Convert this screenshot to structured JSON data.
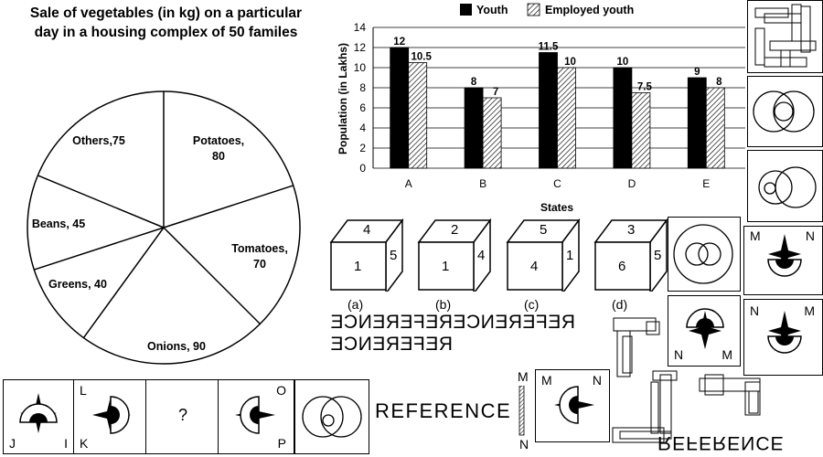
{
  "pie": {
    "title_line1": "Sale of vegetables (in kg) on a particular",
    "title_line2": "day in a housing complex of 50 familes",
    "slices": [
      {
        "label_line1": "Potatoes,",
        "label_line2": "80",
        "value": 80
      },
      {
        "label_line1": "Tomatoes,",
        "label_line2": "70",
        "value": 70
      },
      {
        "label_line1": "Onions, 90",
        "label_line2": "",
        "value": 90
      },
      {
        "label_line1": "Greens, 40",
        "label_line2": "",
        "value": 40
      },
      {
        "label_line1": "Beans, 45",
        "label_line2": "",
        "value": 45
      },
      {
        "label_line1": "Others,75",
        "label_line2": "",
        "value": 75
      }
    ]
  },
  "chart_data": {
    "type": "bar",
    "categories": [
      "A",
      "B",
      "C",
      "D",
      "E"
    ],
    "series": [
      {
        "name": "Youth",
        "values": [
          12,
          8,
          11.5,
          10,
          9
        ],
        "color": "#000000"
      },
      {
        "name": "Employed youth",
        "values": [
          10.5,
          7,
          10,
          7.5,
          8
        ],
        "color": "hatched"
      }
    ],
    "value_labels": [
      [
        "12",
        "8",
        "11.5",
        "10",
        "9"
      ],
      [
        "10.5",
        "7",
        "10",
        "7.5",
        "8"
      ]
    ],
    "xlabel": "States",
    "ylabel": "Population (in Lakhs)",
    "ylim": [
      0,
      14
    ],
    "yticks": [
      "0",
      "2",
      "4",
      "6",
      "8",
      "10",
      "12",
      "14"
    ],
    "grid": true,
    "legend": "top"
  },
  "cubes": [
    {
      "top": "4",
      "front": "1",
      "side": "5",
      "caption": "(a)"
    },
    {
      "top": "2",
      "front": "1",
      "side": "4",
      "caption": "(b)"
    },
    {
      "top": "5",
      "front": "4",
      "side": "1",
      "caption": "(c)"
    },
    {
      "top": "3",
      "front": "6",
      "side": "5",
      "caption": "(d)"
    }
  ],
  "reference_texts": {
    "mirrored_line1": "REFERENCEREFERENCE",
    "mirrored_line2": "REFERENCE",
    "plain": "REFERENCE",
    "bottom_flipped": "REFERENCE"
  },
  "bottom_series": {
    "box1": {
      "bl": "J",
      "br": "I"
    },
    "box2": {
      "tl": "L",
      "bl": "K"
    },
    "box3": {
      "center": "?"
    },
    "box4": {
      "tr": "O",
      "br": "P"
    }
  },
  "mirror_figure": {
    "tl": "M",
    "tr": "N",
    "line_top": "M",
    "line_bottom": "N"
  },
  "answer_figures": {
    "fig_a": {
      "tl": "M",
      "tr": "N"
    },
    "fig_b": {
      "bl": "N",
      "br": "M"
    },
    "fig_c": {
      "tl": "N",
      "tr": "M"
    }
  }
}
